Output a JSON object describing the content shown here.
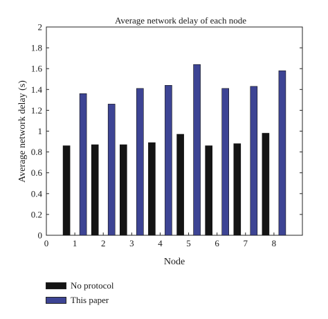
{
  "chart_data": {
    "type": "bar",
    "title": "Average network delay of each node",
    "xlabel": "Node",
    "ylabel": "Average network delay (s)",
    "categories": [
      "1",
      "2",
      "3",
      "4",
      "5",
      "6",
      "7",
      "8"
    ],
    "x_ticks": [
      "0",
      "1",
      "2",
      "3",
      "4",
      "5",
      "6",
      "7",
      "8"
    ],
    "y_ticks": [
      "0",
      "0.2",
      "0.4",
      "0.6",
      "0.8",
      "1",
      "1.2",
      "1.4",
      "1.6",
      "1.8",
      "2"
    ],
    "xlim": [
      0,
      9
    ],
    "ylim": [
      0,
      2
    ],
    "grid": false,
    "legend_position": "bottom-left",
    "series": [
      {
        "name": "No protocol",
        "color": "#141414",
        "values": [
          0.86,
          0.87,
          0.87,
          0.89,
          0.97,
          0.86,
          0.88,
          0.98
        ]
      },
      {
        "name": "This paper",
        "color": "#3d4494",
        "values": [
          1.36,
          1.26,
          1.41,
          1.44,
          1.64,
          1.41,
          1.43,
          1.58
        ]
      }
    ]
  }
}
